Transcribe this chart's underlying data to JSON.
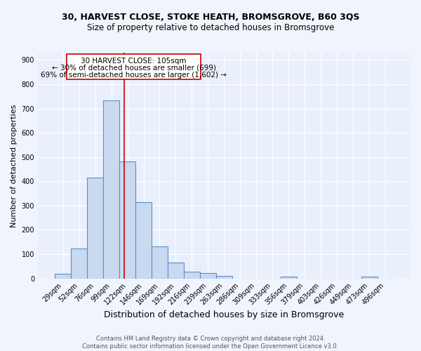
{
  "title_line1": "30, HARVEST CLOSE, STOKE HEATH, BROMSGROVE, B60 3QS",
  "title_line2": "Size of property relative to detached houses in Bromsgrove",
  "xlabel": "Distribution of detached houses by size in Bromsgrove",
  "ylabel": "Number of detached properties",
  "bar_labels": [
    "29sqm",
    "52sqm",
    "76sqm",
    "99sqm",
    "122sqm",
    "146sqm",
    "169sqm",
    "192sqm",
    "216sqm",
    "239sqm",
    "263sqm",
    "286sqm",
    "309sqm",
    "333sqm",
    "356sqm",
    "379sqm",
    "403sqm",
    "426sqm",
    "449sqm",
    "473sqm",
    "496sqm"
  ],
  "bar_values": [
    20,
    122,
    416,
    733,
    483,
    313,
    131,
    65,
    28,
    23,
    11,
    0,
    0,
    0,
    8,
    0,
    0,
    0,
    0,
    8,
    0
  ],
  "bar_width": 1.0,
  "bar_facecolor": "#c9d9f0",
  "bar_edgecolor": "#5b8fc9",
  "vline_x": 3.82,
  "vline_color": "#cc0000",
  "annotation_line1": "30 HARVEST CLOSE: 105sqm",
  "annotation_line2": "← 30% of detached houses are smaller (699)",
  "annotation_line3": "69% of semi-detached houses are larger (1,602) →",
  "annotation_box_edgecolor": "#cc0000",
  "annotation_fontsize": 7.5,
  "ylim": [
    0,
    930
  ],
  "yticks": [
    0,
    100,
    200,
    300,
    400,
    500,
    600,
    700,
    800,
    900
  ],
  "background_color": "#eaf0fb",
  "fig_background_color": "#f0f4fc",
  "grid_color": "#ffffff",
  "footnote": "Contains HM Land Registry data © Crown copyright and database right 2024.\nContains public sector information licensed under the Open Government Licence v3.0.",
  "title_fontsize": 9,
  "subtitle_fontsize": 8.5,
  "xlabel_fontsize": 9,
  "ylabel_fontsize": 8,
  "tick_fontsize": 7,
  "footnote_fontsize": 6
}
